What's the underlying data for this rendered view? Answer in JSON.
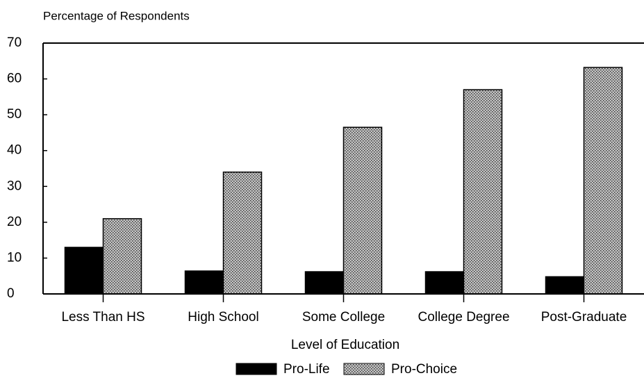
{
  "chart_data": {
    "type": "bar",
    "title": "Percentage of Respondents",
    "x_label": "Level of Education",
    "categories": [
      "Less Than HS",
      "High School",
      "Some College",
      "College Degree",
      "Post-Graduate"
    ],
    "series": [
      {
        "name": "Pro-Life",
        "color": "#000000",
        "values": [
          13,
          6.4,
          6.2,
          6.2,
          4.8
        ]
      },
      {
        "name": "Pro-Choice",
        "color": "#c4c4c4",
        "values": [
          21,
          34,
          46.5,
          57,
          63.2
        ]
      }
    ],
    "ylim": [
      0,
      70
    ],
    "yticks": [
      0,
      10,
      20,
      30,
      40,
      50,
      60,
      70
    ],
    "grid": false
  }
}
